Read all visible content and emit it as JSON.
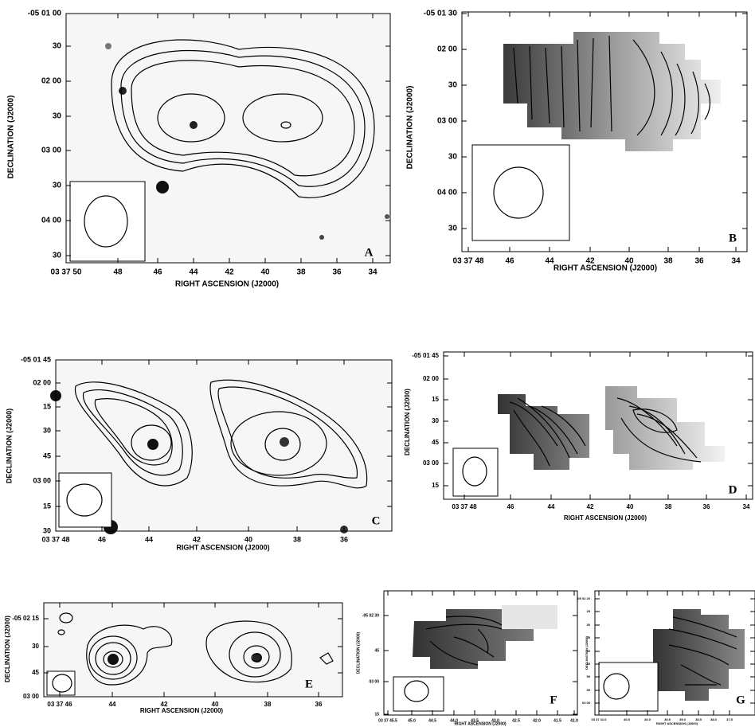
{
  "panels": [
    {
      "letter": "A",
      "x_label": "RIGHT ASCENSION (J2000)",
      "y_label": "DECLINATION (J2000)",
      "xticks": [
        "03 37 50",
        "48",
        "46",
        "44",
        "42",
        "40",
        "38",
        "36",
        "34"
      ],
      "yticks": [
        "-05 01 00",
        "30",
        "02 00",
        "30",
        "03 00",
        "30",
        "04 00",
        "30"
      ]
    },
    {
      "letter": "B",
      "x_label": "RIGHT ASCENSION (J2000)",
      "y_label": "DECLINATION (J2000)",
      "xticks": [
        "03 37 48",
        "46",
        "44",
        "42",
        "40",
        "38",
        "36",
        "34"
      ],
      "yticks": [
        "-05 01 30",
        "02 00",
        "30",
        "03 00",
        "30",
        "04 00",
        "30"
      ]
    },
    {
      "letter": "C",
      "x_label": "RIGHT ASCENSION (J2000)",
      "y_label": "DECLINATION (J2000)",
      "xticks": [
        "03 37 48",
        "46",
        "44",
        "42",
        "40",
        "38",
        "36"
      ],
      "yticks": [
        "-05 01 45",
        "02 00",
        "15",
        "30",
        "45",
        "03 00",
        "15",
        "30"
      ]
    },
    {
      "letter": "D",
      "x_label": "RIGHT ASCENSION (J2000)",
      "y_label": "DECLINATION (J2000)",
      "xticks": [
        "03 37 48",
        "46",
        "44",
        "42",
        "40",
        "38",
        "36",
        "34"
      ],
      "yticks": [
        "-05 01 45",
        "02 00",
        "15",
        "30",
        "45",
        "03 00",
        "15"
      ]
    },
    {
      "letter": "E",
      "x_label": "RIGHT ASCENSION (J2000)",
      "y_label": "DECLINATION (J2000)",
      "xticks": [
        "03 37 46",
        "44",
        "42",
        "40",
        "38",
        "36"
      ],
      "yticks": [
        "-05 02 15",
        "30",
        "45",
        "03 00"
      ]
    },
    {
      "letter": "F",
      "x_label": "RIGHT ASCENSION (J2000)",
      "y_label": "DECLINATION (J2000)",
      "xticks": [
        "03 37 45.5",
        "45.0",
        "44.5",
        "44.0",
        "43.5",
        "43.0",
        "42.5",
        "42.0",
        "41.5",
        "41.0"
      ],
      "yticks": [
        "-05 02 30",
        "45",
        "03 00",
        "15"
      ]
    },
    {
      "letter": "G",
      "x_label": "RIGHT ASCENSION (J2000)",
      "y_label": "DECLINATION (J2000)",
      "xticks": [
        "03 37 41.0",
        "40.5",
        "40.0",
        "39.5",
        "39.0",
        "38.5",
        "38.0",
        "37.5"
      ],
      "yticks": [
        "-05 02 20",
        "25",
        "30",
        "35",
        "40",
        "45",
        "50",
        "55",
        "03 00"
      ]
    }
  ]
}
